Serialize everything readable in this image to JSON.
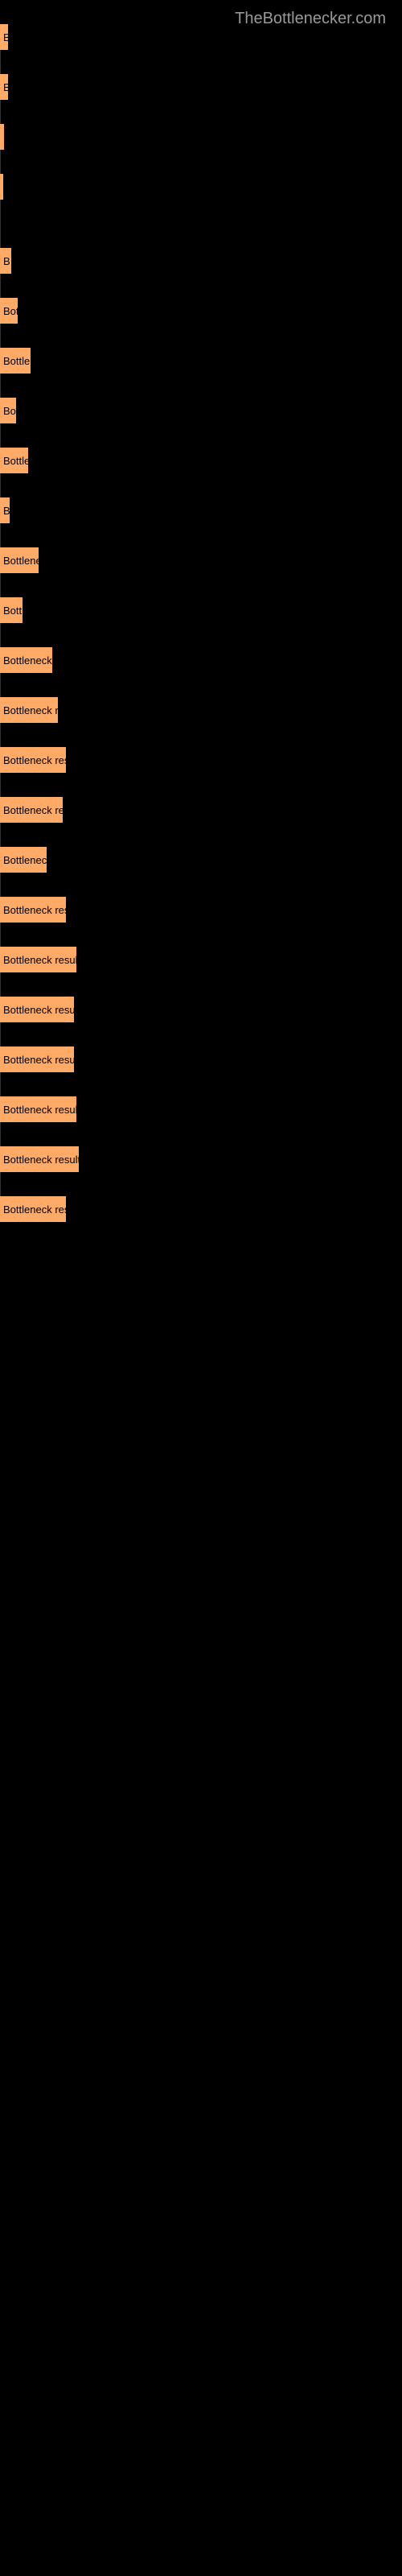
{
  "watermark": "TheBottlenecker.com",
  "top_chart": {
    "type": "bar",
    "orientation": "horizontal",
    "bar_color": "#ffaa66",
    "background_color": "#000000",
    "text_color_on_bar": "#000000",
    "bars": [
      {
        "label": "B",
        "width": 10
      },
      {
        "label": "B",
        "width": 10
      },
      {
        "label": "",
        "width": 5
      },
      {
        "label": "",
        "width": 3
      }
    ]
  },
  "bottom_chart": {
    "type": "bar",
    "orientation": "horizontal",
    "bar_color": "#ffaa66",
    "background_color": "#000000",
    "text_color_on_bar": "#000000",
    "bars": [
      {
        "label": "B",
        "width": 14
      },
      {
        "label": "Bot",
        "width": 22
      },
      {
        "label": "Bottler",
        "width": 38
      },
      {
        "label": "Bo",
        "width": 20
      },
      {
        "label": "Bottle",
        "width": 35
      },
      {
        "label": "B",
        "width": 12
      },
      {
        "label": "Bottlene",
        "width": 48
      },
      {
        "label": "Bott",
        "width": 28
      },
      {
        "label": "Bottleneck r",
        "width": 65
      },
      {
        "label": "Bottleneck re",
        "width": 72
      },
      {
        "label": "Bottleneck resu",
        "width": 82
      },
      {
        "label": "Bottleneck res",
        "width": 78
      },
      {
        "label": "Bottleneck",
        "width": 58
      },
      {
        "label": "Bottleneck resu",
        "width": 82
      },
      {
        "label": "Bottleneck result ",
        "width": 95
      },
      {
        "label": "Bottleneck result",
        "width": 92
      },
      {
        "label": "Bottleneck result",
        "width": 92
      },
      {
        "label": "Bottleneck result ",
        "width": 95
      },
      {
        "label": "Bottleneck result  ",
        "width": 98
      },
      {
        "label": "Bottleneck resu",
        "width": 82
      }
    ]
  }
}
